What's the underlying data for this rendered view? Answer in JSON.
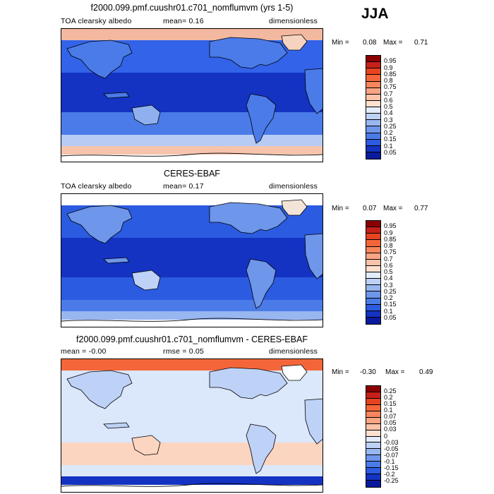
{
  "season": "JJA",
  "panels": [
    {
      "title": "f2000.099.pmf.cuushr01.c701_nomflumvm (yrs 1-5)",
      "left_label": "TOA clearsky albedo",
      "mid_label": "mean=   0.16",
      "right_label": "dimensionless",
      "min_label": "Min =",
      "min_value": "0.08",
      "max_label": "Max =",
      "max_value": "0.71",
      "bands": {
        "arctic": "#f2b9a0",
        "north_mid": "#3263e9",
        "tropics": "#1433c2",
        "south_mid": "#4a7be8",
        "south_high": "#b7cbf4",
        "antarctic_edge": "#f6c4ad",
        "antarctic": "#ffffff",
        "land": "#4a7be8",
        "desert": "#8fb0ef",
        "greenland": "#f6d2c0"
      },
      "colorbar": {
        "labels": [
          "0.95",
          "0.9",
          "0.85",
          "0.8",
          "0.75",
          "0.7",
          "0.6",
          "0.5",
          "0.4",
          "0.3",
          "0.25",
          "0.2",
          "0.15",
          "0.1",
          "0.05"
        ],
        "colors": [
          "#8b0000",
          "#c7201a",
          "#e8431f",
          "#f4663a",
          "#f7865d",
          "#f9a584",
          "#fbc3a8",
          "#fde0d0",
          "#e3ecfb",
          "#bed1f6",
          "#98b6f0",
          "#6e96ea",
          "#4a7be8",
          "#2b5be0",
          "#1433c2",
          "#0a1a9e"
        ]
      }
    },
    {
      "title": "CERES-EBAF",
      "left_label": "TOA clearsky albedo",
      "mid_label": "mean=   0.17",
      "right_label": "dimensionless",
      "min_label": "Min =",
      "min_value": "0.07",
      "max_label": "Max =",
      "max_value": "0.77",
      "bands": {
        "arctic": "#ffffff",
        "north_mid": "#2b5be0",
        "tropics": "#1433c2",
        "south_mid": "#2b5be0",
        "south_high": "#4a7be8",
        "antarctic_edge": "#98b6f0",
        "antarctic": "#ffffff",
        "land": "#6e96ea",
        "desert": "#bed1f6",
        "greenland": "#f3e4d8"
      },
      "colorbar": {
        "labels": [
          "0.95",
          "0.9",
          "0.85",
          "0.8",
          "0.75",
          "0.7",
          "0.6",
          "0.5",
          "0.4",
          "0.3",
          "0.25",
          "0.2",
          "0.15",
          "0.1",
          "0.05"
        ],
        "colors": [
          "#8b0000",
          "#c7201a",
          "#e8431f",
          "#f4663a",
          "#f7865d",
          "#f9a584",
          "#fbc3a8",
          "#fde0d0",
          "#e3ecfb",
          "#bed1f6",
          "#98b6f0",
          "#6e96ea",
          "#4a7be8",
          "#2b5be0",
          "#1433c2",
          "#0a1a9e"
        ]
      }
    },
    {
      "title": "f2000.099.pmf.cuushr01.c701_nomflumvm - CERES-EBAF",
      "left_label": "mean =   -0.00",
      "mid_label": "rmse =   0.05",
      "right_label": "dimensionless",
      "min_label": "Min =",
      "min_value": "-0.30",
      "max_label": "Max =",
      "max_value": "0.49",
      "bands": {
        "arctic": "#f4663a",
        "north_mid": "#dbe7fb",
        "tropics": "#dbe7fb",
        "south_mid": "#fbd5c0",
        "south_high": "#dbe7fb",
        "antarctic_edge": "#1433c2",
        "antarctic": "#ffffff",
        "land": "#bed1f6",
        "desert": "#fbd5c0",
        "greenland": "#ffffff"
      },
      "colorbar": {
        "labels": [
          "0.25",
          "0.2",
          "0.15",
          "0.1",
          "0.07",
          "0.05",
          "0.03",
          "0",
          "-0.03",
          "-0.05",
          "-0.07",
          "-0.1",
          "-0.15",
          "-0.2",
          "-0.25"
        ],
        "colors": [
          "#8b0000",
          "#c7201a",
          "#e8431f",
          "#f4663a",
          "#f7865d",
          "#f9a584",
          "#fbc3a8",
          "#fde0d0",
          "#e3ecfb",
          "#bed1f6",
          "#98b6f0",
          "#6e96ea",
          "#4a7be8",
          "#2b5be0",
          "#1433c2",
          "#0a1a9e"
        ]
      }
    }
  ],
  "chart_data": [
    {
      "type": "heatmap",
      "title": "f2000.099.pmf.cuushr01.c701_nomflumvm (yrs 1-5)",
      "variable": "TOA clearsky albedo",
      "units": "dimensionless",
      "season": "JJA",
      "mean": 0.16,
      "min": 0.08,
      "max": 0.71,
      "contour_levels": [
        0.05,
        0.1,
        0.15,
        0.2,
        0.25,
        0.3,
        0.4,
        0.5,
        0.6,
        0.7,
        0.75,
        0.8,
        0.85,
        0.9,
        0.95
      ]
    },
    {
      "type": "heatmap",
      "title": "CERES-EBAF",
      "variable": "TOA clearsky albedo",
      "units": "dimensionless",
      "season": "JJA",
      "mean": 0.17,
      "min": 0.07,
      "max": 0.77,
      "contour_levels": [
        0.05,
        0.1,
        0.15,
        0.2,
        0.25,
        0.3,
        0.4,
        0.5,
        0.6,
        0.7,
        0.75,
        0.8,
        0.85,
        0.9,
        0.95
      ]
    },
    {
      "type": "heatmap",
      "title": "f2000.099.pmf.cuushr01.c701_nomflumvm - CERES-EBAF",
      "units": "dimensionless",
      "mean": -0.0,
      "rmse": 0.05,
      "min": -0.3,
      "max": 0.49,
      "contour_levels": [
        -0.25,
        -0.2,
        -0.15,
        -0.1,
        -0.07,
        -0.05,
        -0.03,
        0,
        0.03,
        0.05,
        0.07,
        0.1,
        0.15,
        0.2,
        0.25
      ]
    }
  ]
}
